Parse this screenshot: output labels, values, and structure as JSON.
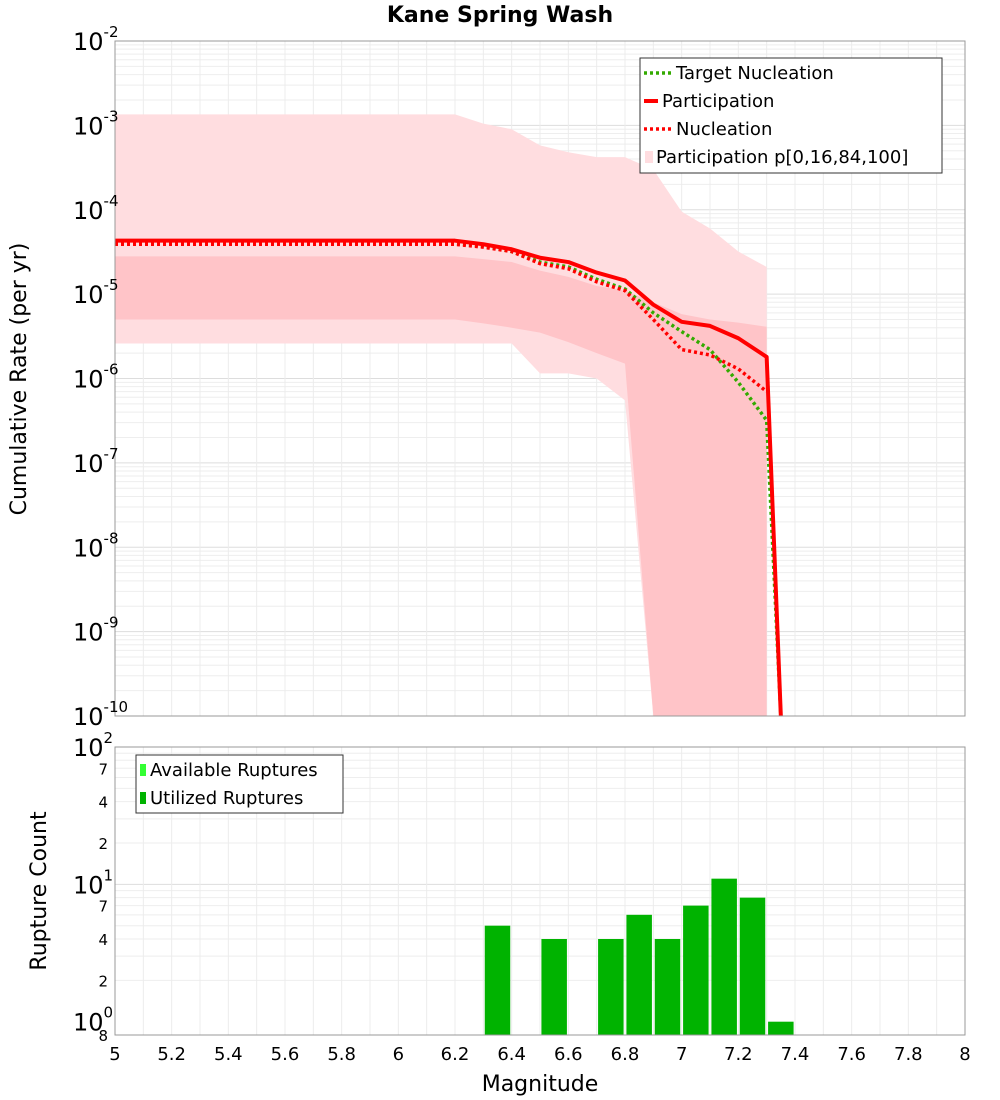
{
  "chart_data": [
    {
      "type": "line",
      "title": "Kane Spring Wash",
      "xlabel": "",
      "ylabel": "Cumulative Rate (per yr)",
      "xlim": [
        5,
        8
      ],
      "ylim": [
        1e-10,
        0.01
      ],
      "yscale": "log",
      "grid": true,
      "legend_placement": "top-right",
      "y_ticks": [
        {
          "base": "10",
          "exp": "-2",
          "value": 0.01
        },
        {
          "base": "10",
          "exp": "-3",
          "value": 0.001
        },
        {
          "base": "10",
          "exp": "-4",
          "value": 0.0001
        },
        {
          "base": "10",
          "exp": "-5",
          "value": 1e-05
        },
        {
          "base": "10",
          "exp": "-6",
          "value": 1e-06
        },
        {
          "base": "10",
          "exp": "-7",
          "value": 1e-07
        },
        {
          "base": "10",
          "exp": "-8",
          "value": 1e-08
        },
        {
          "base": "10",
          "exp": "-9",
          "value": 1e-09
        },
        {
          "base": "10",
          "exp": "-10",
          "value": 1e-10
        }
      ],
      "series": [
        {
          "name": "Target Nucleation",
          "style": "dotted",
          "color": "#33aa00",
          "x": [
            5,
            6.2,
            6.3,
            6.4,
            6.5,
            6.6,
            6.7,
            6.8,
            6.9,
            7.0,
            7.1,
            7.2,
            7.3,
            7.35
          ],
          "y": [
            4e-05,
            4e-05,
            3.7e-05,
            3.2e-05,
            2.4e-05,
            2.1e-05,
            1.5e-05,
            1.15e-05,
            6e-06,
            3.6e-06,
            2.2e-06,
            9e-07,
            3.2e-07,
            1e-10
          ]
        },
        {
          "name": "Participation",
          "style": "solid",
          "color": "#ff0000",
          "x": [
            5,
            6.2,
            6.3,
            6.4,
            6.5,
            6.6,
            6.7,
            6.8,
            6.9,
            7.0,
            7.1,
            7.2,
            7.3,
            7.35
          ],
          "y": [
            4.3e-05,
            4.3e-05,
            3.9e-05,
            3.4e-05,
            2.7e-05,
            2.4e-05,
            1.8e-05,
            1.45e-05,
            7.5e-06,
            4.7e-06,
            4.2e-06,
            3e-06,
            1.8e-06,
            1e-10
          ]
        },
        {
          "name": "Nucleation",
          "style": "dotted",
          "color": "#ff0000",
          "x": [
            5,
            6.2,
            6.3,
            6.4,
            6.5,
            6.6,
            6.7,
            6.8,
            6.9,
            7.0,
            7.1,
            7.2,
            7.3
          ],
          "y": [
            3.9e-05,
            3.9e-05,
            3.6e-05,
            3.2e-05,
            2.3e-05,
            2e-05,
            1.4e-05,
            1.1e-05,
            5e-06,
            2.2e-06,
            1.9e-06,
            1.3e-06,
            7e-07
          ]
        }
      ],
      "bands": [
        {
          "name": "Participation p[0,16,84,100]",
          "level": "outer",
          "color": "#ffdde0",
          "x": [
            5,
            6.2,
            6.3,
            6.4,
            6.5,
            6.6,
            6.7,
            6.8,
            6.9,
            7.0,
            7.1,
            7.2,
            7.3
          ],
          "upper": [
            0.00135,
            0.00135,
            0.00105,
            0.0009,
            0.00058,
            0.00048,
            0.00042,
            0.00042,
            0.0003,
            9.5e-05,
            6e-05,
            3.2e-05,
            2.1e-05
          ],
          "lower": [
            2.6e-06,
            2.6e-06,
            2.6e-06,
            2.6e-06,
            1.15e-06,
            1.15e-06,
            1e-06,
            5.5e-07,
            1e-10,
            1e-10,
            1e-10,
            1e-10,
            1e-10
          ]
        },
        {
          "name": "Participation p[0,16,84,100]",
          "level": "inner",
          "color": "#ffc4c8",
          "x": [
            5,
            6.2,
            6.3,
            6.4,
            6.5,
            6.6,
            6.7,
            6.8,
            6.9,
            7.0,
            7.1,
            7.2,
            7.3
          ],
          "upper": [
            2.8e-05,
            2.8e-05,
            2.6e-05,
            2.4e-05,
            1.9e-05,
            1.6e-05,
            1.25e-05,
            1.1e-05,
            8e-06,
            5.8e-06,
            5e-06,
            4.6e-06,
            4.1e-06
          ],
          "lower": [
            5e-06,
            5e-06,
            4.5e-06,
            4e-06,
            3.5e-06,
            2.7e-06,
            2e-06,
            1.5e-06,
            1e-10,
            1e-10,
            1e-10,
            1e-10,
            1e-10
          ]
        }
      ]
    },
    {
      "type": "bar",
      "xlabel": "Magnitude",
      "ylabel": "Rupture Count",
      "xlim": [
        5,
        8
      ],
      "ylim": [
        0.8,
        100
      ],
      "yscale": "log",
      "grid": true,
      "legend_placement": "top-left",
      "x_ticks": [
        "5",
        "5.2",
        "5.4",
        "5.6",
        "5.8",
        "6",
        "6.2",
        "6.4",
        "6.6",
        "6.8",
        "7",
        "7.2",
        "7.4",
        "7.6",
        "7.8",
        "8"
      ],
      "y_major_ticks": [
        {
          "base": "10",
          "exp": "0",
          "value": 1
        },
        {
          "base": "10",
          "exp": "1",
          "value": 10
        },
        {
          "base": "10",
          "exp": "2",
          "value": 100
        }
      ],
      "y_minor_ticks": [
        "8",
        "2",
        "4",
        "7",
        "2",
        "4",
        "7"
      ],
      "series": [
        {
          "name": "Available Ruptures",
          "color": "#33ff33",
          "x": [],
          "values": []
        },
        {
          "name": "Utilized Ruptures",
          "color": "#00b300",
          "x": [
            6.35,
            6.55,
            6.75,
            6.85,
            6.95,
            7.05,
            7.15,
            7.25,
            7.35
          ],
          "values": [
            5,
            4,
            4,
            6,
            4,
            7,
            11,
            8,
            1
          ]
        }
      ]
    }
  ]
}
